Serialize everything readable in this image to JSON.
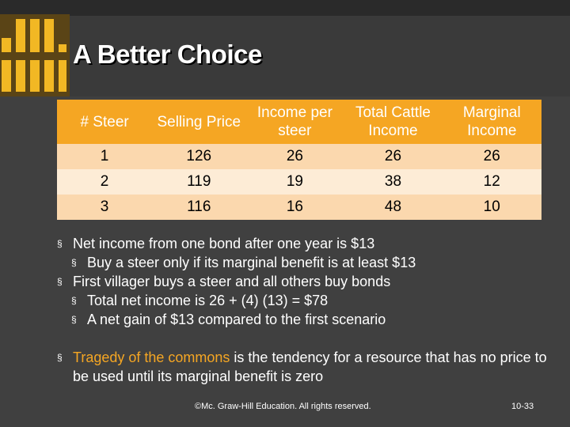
{
  "slide": {
    "title": "A Better Choice",
    "table": {
      "headers": [
        "# Steer",
        "Selling Price",
        "Income per steer",
        "Total Cattle Income",
        "Marginal Income"
      ],
      "rows": [
        [
          "1",
          "126",
          "26",
          "26",
          "26"
        ],
        [
          "2",
          "119",
          "19",
          "38",
          "12"
        ],
        [
          "3",
          "116",
          "16",
          "48",
          "10"
        ]
      ]
    },
    "bullets": {
      "b1": "Net income from one bond after one year is $13",
      "b1_sub1": "Buy a steer only if its marginal benefit is at least $13",
      "b2": "First villager buys a steer and all others buy bonds",
      "b2_sub1": "Total net income is 26 + (4) (13) = $78",
      "b2_sub2": "A net gain of $13 compared to the first scenario",
      "b3_highlight": "Tragedy of the commons",
      "b3_rest": " is the tendency for a resource that has no price to be used until its marginal benefit is zero"
    },
    "bullet_marker": "§",
    "footer": "©Mc. Graw-Hill Education. All rights reserved.",
    "page_number": "10-33",
    "colors": {
      "background": "#404040",
      "accent": "#f5a623",
      "row_dark": "#fbd8ae",
      "row_light": "#fdecd6"
    }
  }
}
